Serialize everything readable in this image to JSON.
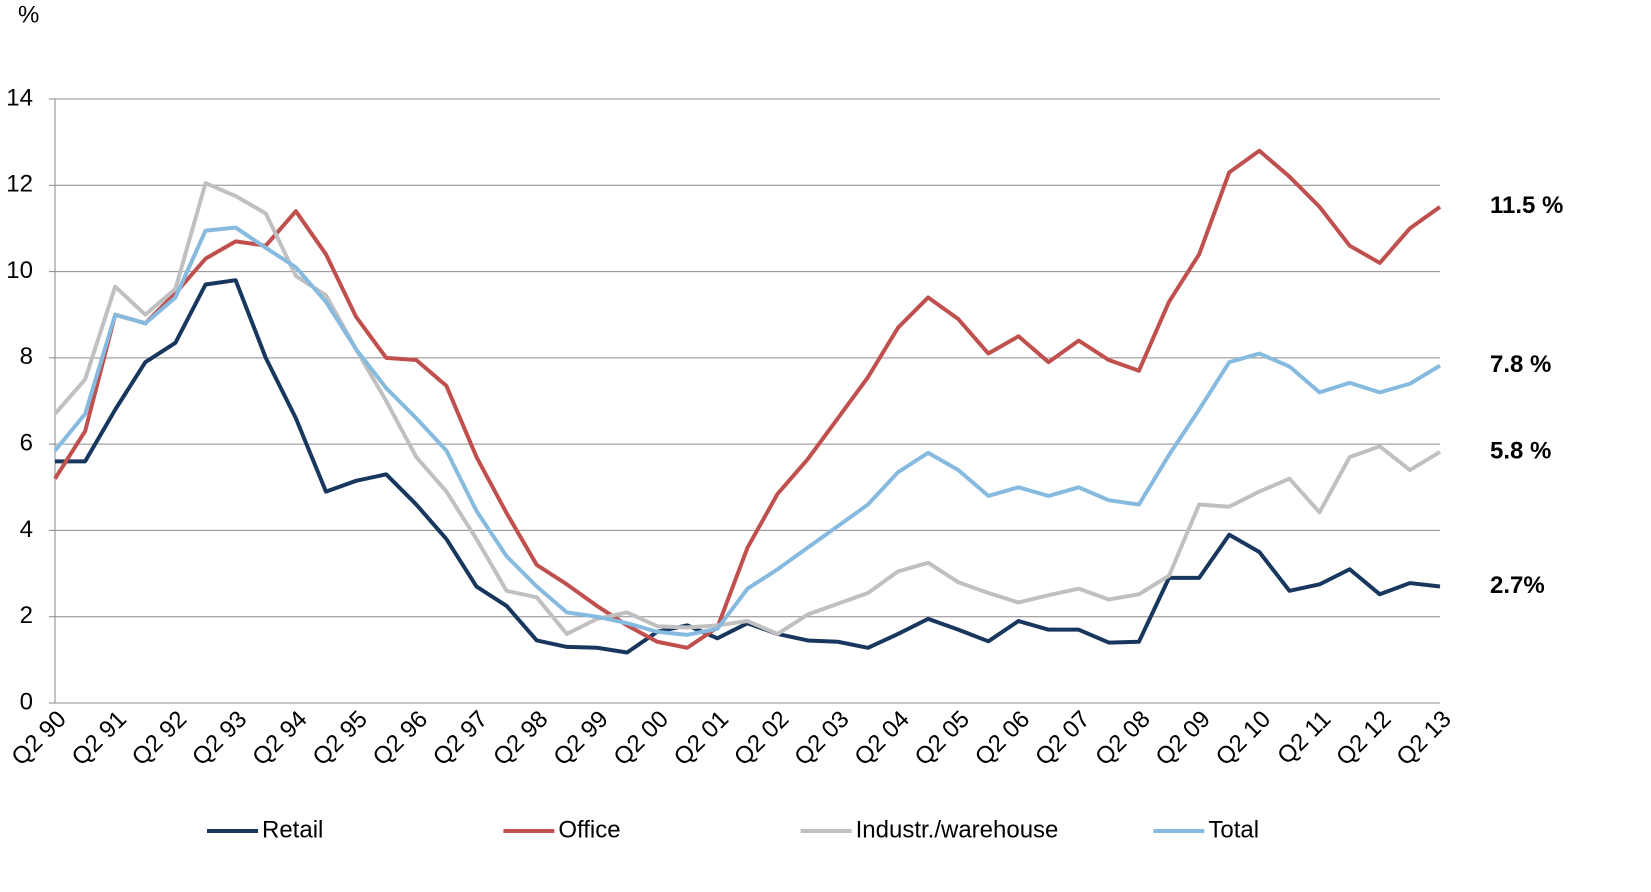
{
  "chart_data": {
    "type": "line",
    "y_label": "%",
    "categories": [
      "Q2 90",
      null,
      "Q2 91",
      null,
      "Q2 92",
      null,
      "Q2 93",
      null,
      "Q2 94",
      null,
      "Q2 95",
      null,
      "Q2 96",
      null,
      "Q2 97",
      null,
      "Q2 98",
      null,
      "Q2 99",
      null,
      "Q2 00",
      null,
      "Q2 01",
      null,
      "Q2 02",
      null,
      "Q2 03",
      null,
      "Q2 04",
      null,
      "Q2 05",
      null,
      "Q2 06",
      null,
      "Q2 07",
      null,
      "Q2 08",
      null,
      "Q2 09",
      null,
      "Q2 10",
      null,
      "Q2 11",
      null,
      "Q2 12",
      null,
      "Q2 13"
    ],
    "series": [
      {
        "name": "Retail",
        "color": "#17375e",
        "end_label": "2.7%",
        "values": [
          5.6,
          5.6,
          6.8,
          7.9,
          8.35,
          9.7,
          9.8,
          8.0,
          6.6,
          4.9,
          5.15,
          5.3,
          4.6,
          3.8,
          2.7,
          2.25,
          1.45,
          1.3,
          1.28,
          1.17,
          1.65,
          1.8,
          1.5,
          1.85,
          1.6,
          1.45,
          1.42,
          1.28,
          1.6,
          1.95,
          1.7,
          1.43,
          1.9,
          1.7,
          1.7,
          1.4,
          1.42,
          2.9,
          2.9,
          3.9,
          3.5,
          2.6,
          2.75,
          3.1,
          2.52,
          2.78,
          2.7
        ]
      },
      {
        "name": "Office",
        "color": "#c0504d",
        "end_label": "11.5 %",
        "values": [
          5.2,
          6.3,
          9.0,
          8.8,
          9.5,
          10.3,
          10.7,
          10.6,
          11.4,
          10.4,
          8.95,
          8.0,
          7.95,
          7.35,
          5.7,
          4.4,
          3.2,
          2.75,
          2.25,
          1.8,
          1.42,
          1.28,
          1.75,
          3.6,
          4.85,
          5.65,
          6.6,
          7.55,
          8.7,
          9.4,
          8.9,
          8.1,
          8.5,
          7.9,
          8.4,
          7.95,
          7.7,
          9.3,
          10.4,
          12.3,
          12.8,
          12.2,
          11.5,
          10.6,
          10.2,
          11.0,
          11.5
        ]
      },
      {
        "name": "Industr./warehouse",
        "color": "#c0c0c0",
        "end_label": "5.8 %",
        "values": [
          6.7,
          7.5,
          9.65,
          9.0,
          9.6,
          12.05,
          11.75,
          11.35,
          9.9,
          9.45,
          8.2,
          7.0,
          5.7,
          4.9,
          3.8,
          2.6,
          2.45,
          1.6,
          1.95,
          2.1,
          1.78,
          1.75,
          1.8,
          1.9,
          1.6,
          2.05,
          2.3,
          2.55,
          3.05,
          3.25,
          2.8,
          2.55,
          2.33,
          2.5,
          2.65,
          2.4,
          2.52,
          2.95,
          4.6,
          4.55,
          4.9,
          5.2,
          4.42,
          5.7,
          5.95,
          5.4,
          5.82
        ]
      },
      {
        "name": "Total",
        "color": "#86bbdf",
        "end_label": "7.8 %",
        "values": [
          5.85,
          6.7,
          9.0,
          8.8,
          9.4,
          10.95,
          11.02,
          10.55,
          10.1,
          9.3,
          8.2,
          7.3,
          6.6,
          5.85,
          4.45,
          3.4,
          2.7,
          2.1,
          2.0,
          1.85,
          1.65,
          1.58,
          1.72,
          2.65,
          3.1,
          3.6,
          4.1,
          4.6,
          5.35,
          5.8,
          5.4,
          4.8,
          5.0,
          4.8,
          5.0,
          4.7,
          4.6,
          5.75,
          6.8,
          7.9,
          8.1,
          7.8,
          7.2,
          7.42,
          7.2,
          7.4,
          7.82
        ]
      }
    ],
    "ylim": [
      0,
      14
    ],
    "yticks": [
      0,
      2,
      4,
      6,
      8,
      10,
      12,
      14
    ],
    "grid": true,
    "legend": "bottom"
  }
}
